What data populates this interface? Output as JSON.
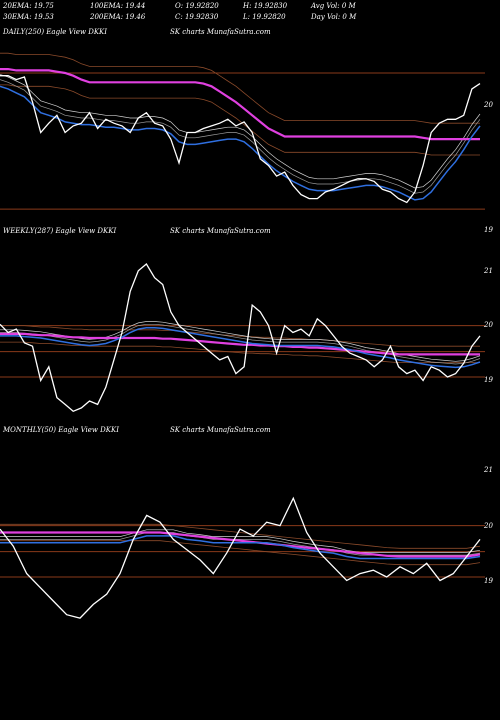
{
  "header": {
    "row1": [
      "20EMA: 19.75",
      "100EMA: 19.44",
      "O: 19.92820",
      "H: 19.92830",
      "Avg Vol: 0  M"
    ],
    "row2": [
      "30EMA: 19.53",
      "200EMA: 19.46",
      "C: 19.92830",
      "L: 19.92820",
      "Day Vol: 0  M"
    ]
  },
  "colors": {
    "background": "#000000",
    "price": "#ffffff",
    "ema_blue": "#2f6fe0",
    "ema_magenta": "#e040e0",
    "level_line": "#8a3a1a",
    "band_brown": "#8a4a2a"
  },
  "chart_data": [
    {
      "type": "line",
      "label_left": "DAILY(250) Eagle  View  DKKI",
      "label_right": "SK charts MunafaSutra.com",
      "y_ticks": [
        "20",
        "19"
      ],
      "ylim": [
        18.85,
        20.25
      ],
      "levels": [
        20.0,
        18.97
      ],
      "series": [
        {
          "role": "price",
          "values": [
            19.98,
            19.98,
            19.95,
            19.97,
            19.78,
            19.55,
            19.62,
            19.68,
            19.55,
            19.6,
            19.62,
            19.7,
            19.58,
            19.65,
            19.62,
            19.6,
            19.55,
            19.66,
            19.7,
            19.62,
            19.6,
            19.5,
            19.32,
            19.55,
            19.55,
            19.58,
            19.6,
            19.62,
            19.65,
            19.6,
            19.63,
            19.55,
            19.35,
            19.3,
            19.22,
            19.25,
            19.15,
            19.08,
            19.05,
            19.05,
            19.1,
            19.12,
            19.15,
            19.18,
            19.2,
            19.2,
            19.18,
            19.12,
            19.1,
            19.05,
            19.02,
            19.1,
            19.3,
            19.55,
            19.62,
            19.65,
            19.65,
            19.68,
            19.88,
            19.92
          ]
        },
        {
          "role": "ema_fast",
          "values": [
            19.9,
            19.88,
            19.85,
            19.82,
            19.76,
            19.7,
            19.68,
            19.66,
            19.63,
            19.62,
            19.61,
            19.61,
            19.6,
            19.59,
            19.59,
            19.58,
            19.57,
            19.57,
            19.58,
            19.58,
            19.57,
            19.54,
            19.48,
            19.46,
            19.46,
            19.47,
            19.48,
            19.49,
            19.5,
            19.5,
            19.48,
            19.43,
            19.37,
            19.31,
            19.26,
            19.22,
            19.18,
            19.15,
            19.12,
            19.11,
            19.11,
            19.11,
            19.12,
            19.13,
            19.14,
            19.15,
            19.15,
            19.14,
            19.12,
            19.1,
            19.07,
            19.04,
            19.05,
            19.1,
            19.18,
            19.26,
            19.33,
            19.42,
            19.52,
            19.6
          ]
        },
        {
          "role": "ema_slow",
          "values": [
            20.03,
            20.03,
            20.02,
            20.02,
            20.02,
            20.02,
            20.02,
            20.01,
            20.0,
            19.98,
            19.95,
            19.93,
            19.93,
            19.93,
            19.93,
            19.93,
            19.93,
            19.93,
            19.93,
            19.93,
            19.93,
            19.93,
            19.93,
            19.93,
            19.93,
            19.92,
            19.9,
            19.86,
            19.82,
            19.78,
            19.73,
            19.68,
            19.63,
            19.58,
            19.55,
            19.52,
            19.52,
            19.52,
            19.52,
            19.52,
            19.52,
            19.52,
            19.52,
            19.52,
            19.52,
            19.52,
            19.52,
            19.52,
            19.52,
            19.52,
            19.52,
            19.52,
            19.51,
            19.5,
            19.5,
            19.5,
            19.5,
            19.5,
            19.5,
            19.5
          ]
        }
      ]
    },
    {
      "type": "line",
      "label_left": "WEEKLY(287) Eagle  View  DKKI",
      "label_right": "SK charts MunafaSutra.com",
      "y_ticks": [
        "21",
        "20",
        "19"
      ],
      "ylim": [
        18.55,
        21.25
      ],
      "levels": [
        20.0,
        19.62,
        19.25
      ],
      "series": [
        {
          "role": "price",
          "values": [
            20.02,
            19.9,
            19.95,
            19.75,
            19.7,
            19.2,
            19.4,
            18.95,
            18.85,
            18.75,
            18.8,
            18.9,
            18.85,
            19.1,
            19.5,
            19.9,
            20.5,
            20.8,
            20.9,
            20.7,
            20.6,
            20.2,
            20.0,
            19.9,
            19.8,
            19.7,
            19.6,
            19.5,
            19.55,
            19.3,
            19.4,
            20.3,
            20.2,
            20.0,
            19.6,
            20.0,
            19.9,
            19.95,
            19.85,
            20.1,
            20.0,
            19.85,
            19.7,
            19.6,
            19.55,
            19.5,
            19.4,
            19.5,
            19.7,
            19.4,
            19.3,
            19.35,
            19.2,
            19.4,
            19.35,
            19.25,
            19.3,
            19.45,
            19.7,
            19.85
          ]
        },
        {
          "role": "ema_fast",
          "values": [
            19.85,
            19.85,
            19.85,
            19.84,
            19.83,
            19.82,
            19.8,
            19.78,
            19.76,
            19.74,
            19.72,
            19.71,
            19.72,
            19.74,
            19.78,
            19.83,
            19.9,
            19.95,
            19.97,
            19.97,
            19.96,
            19.94,
            19.92,
            19.9,
            19.88,
            19.86,
            19.84,
            19.82,
            19.8,
            19.78,
            19.76,
            19.74,
            19.73,
            19.72,
            19.71,
            19.71,
            19.71,
            19.71,
            19.71,
            19.71,
            19.7,
            19.69,
            19.67,
            19.65,
            19.62,
            19.59,
            19.57,
            19.55,
            19.53,
            19.5,
            19.48,
            19.46,
            19.44,
            19.42,
            19.41,
            19.4,
            19.39,
            19.4,
            19.43,
            19.47
          ]
        },
        {
          "role": "ema_slow",
          "values": [
            19.88,
            19.88,
            19.88,
            19.88,
            19.87,
            19.86,
            19.86,
            19.85,
            19.84,
            19.83,
            19.83,
            19.82,
            19.82,
            19.82,
            19.82,
            19.82,
            19.82,
            19.82,
            19.82,
            19.82,
            19.81,
            19.81,
            19.8,
            19.79,
            19.78,
            19.77,
            19.76,
            19.75,
            19.74,
            19.73,
            19.72,
            19.72,
            19.71,
            19.71,
            19.7,
            19.7,
            19.69,
            19.69,
            19.68,
            19.68,
            19.67,
            19.66,
            19.65,
            19.64,
            19.63,
            19.62,
            19.61,
            19.6,
            19.59,
            19.58,
            19.58,
            19.58,
            19.58,
            19.58,
            19.58,
            19.58,
            19.58,
            19.58,
            19.58,
            19.58
          ]
        }
      ]
    },
    {
      "type": "line",
      "label_left": "MONTHLY(50) Eagle  View  DKKI",
      "label_right": "SK charts MunafaSutra.com",
      "y_ticks": [
        "21",
        "20",
        "19"
      ],
      "ylim": [
        18.55,
        21.25
      ],
      "levels": [
        20.0,
        19.62,
        19.25
      ],
      "series": [
        {
          "role": "price",
          "values": [
            19.95,
            19.7,
            19.3,
            19.1,
            18.9,
            18.7,
            18.65,
            18.85,
            19.0,
            19.3,
            19.8,
            20.15,
            20.05,
            19.8,
            19.65,
            19.5,
            19.3,
            19.6,
            19.95,
            19.85,
            20.05,
            20.0,
            20.4,
            19.9,
            19.6,
            19.4,
            19.2,
            19.3,
            19.35,
            19.25,
            19.4,
            19.3,
            19.45,
            19.2,
            19.3,
            19.55,
            19.8
          ]
        },
        {
          "role": "ema_fast",
          "values": [
            19.75,
            19.75,
            19.75,
            19.75,
            19.75,
            19.75,
            19.75,
            19.75,
            19.75,
            19.75,
            19.8,
            19.85,
            19.85,
            19.85,
            19.8,
            19.78,
            19.75,
            19.75,
            19.75,
            19.75,
            19.75,
            19.72,
            19.68,
            19.65,
            19.62,
            19.6,
            19.55,
            19.52,
            19.52,
            19.52,
            19.52,
            19.52,
            19.52,
            19.52,
            19.52,
            19.52,
            19.55
          ]
        },
        {
          "role": "ema_slow",
          "values": [
            19.9,
            19.9,
            19.9,
            19.9,
            19.9,
            19.9,
            19.9,
            19.9,
            19.9,
            19.9,
            19.9,
            19.9,
            19.9,
            19.88,
            19.86,
            19.84,
            19.82,
            19.8,
            19.78,
            19.76,
            19.74,
            19.72,
            19.7,
            19.68,
            19.66,
            19.64,
            19.62,
            19.6,
            19.58,
            19.56,
            19.55,
            19.55,
            19.55,
            19.55,
            19.55,
            19.55,
            19.58
          ]
        }
      ]
    }
  ]
}
